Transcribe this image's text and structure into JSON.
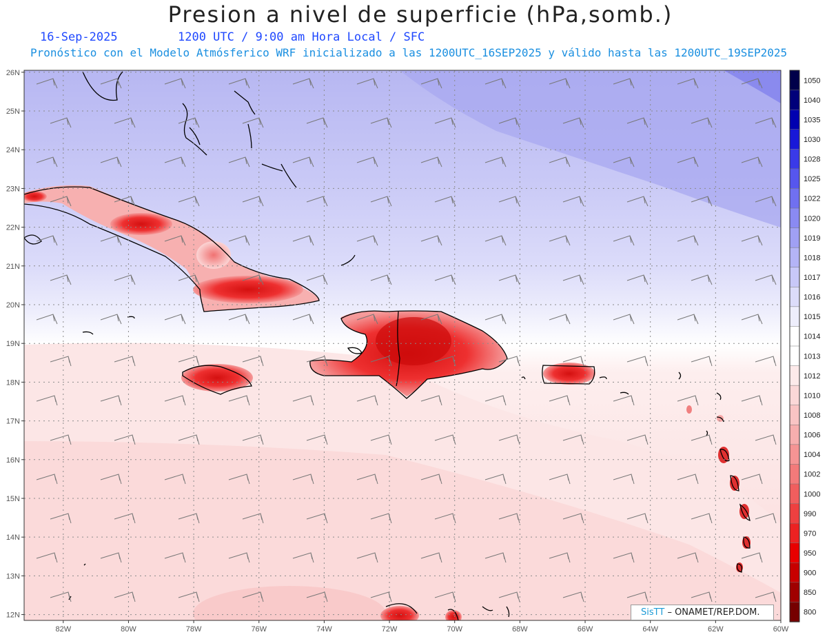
{
  "header": {
    "title": "Presion a nivel de superficie (hPa,somb.)",
    "date": "16-Sep-2025",
    "time": "1200 UTC / 9:00 am Hora Local / SFC",
    "forecast": "Pronóstico con el Modelo Atmósferico WRF inicializado a las 1200UTC_16SEP2025 y válido hasta las  1200UTC_19SEP2025"
  },
  "map": {
    "lon_labels": [
      "82W",
      "80W",
      "78W",
      "76W",
      "74W",
      "72W",
      "70W",
      "68W",
      "66W",
      "64W",
      "62W",
      "60W"
    ],
    "lat_labels": [
      "26N",
      "25N",
      "24N",
      "23N",
      "22N",
      "21N",
      "20N",
      "19N",
      "18N",
      "17N",
      "16N",
      "15N",
      "14N",
      "13N",
      "12N"
    ],
    "lon_range": [
      -83.2,
      -60
    ],
    "lat_range": [
      11.85,
      26.05
    ]
  },
  "legend": {
    "levels": [
      "1050",
      "1040",
      "1035",
      "1030",
      "1028",
      "1025",
      "1022",
      "1020",
      "1019",
      "1018",
      "1017",
      "1016",
      "1015",
      "1014",
      "1013",
      "1012",
      "1010",
      "1008",
      "1006",
      "1004",
      "1002",
      "1000",
      "990",
      "970",
      "950",
      "900",
      "850",
      "800"
    ],
    "colors": [
      "#00004a",
      "#00007a",
      "#0000b0",
      "#1818d8",
      "#3a3ae8",
      "#5656ee",
      "#7070f0",
      "#8a8af2",
      "#a0a0f4",
      "#b4b4f6",
      "#c8c8f8",
      "#dcdcfa",
      "#eeeefc",
      "#ffffff",
      "#ffffff",
      "#fdeaea",
      "#fbd8d8",
      "#f9c4c4",
      "#f7aeae",
      "#f59494",
      "#f37a7a",
      "#f05e5e",
      "#ee4040",
      "#ec2222",
      "#e80000",
      "#c80000",
      "#a00000",
      "#760000"
    ]
  },
  "credit": {
    "brand": "SisTT",
    "text": "– ONAMET/REP.DOM."
  }
}
